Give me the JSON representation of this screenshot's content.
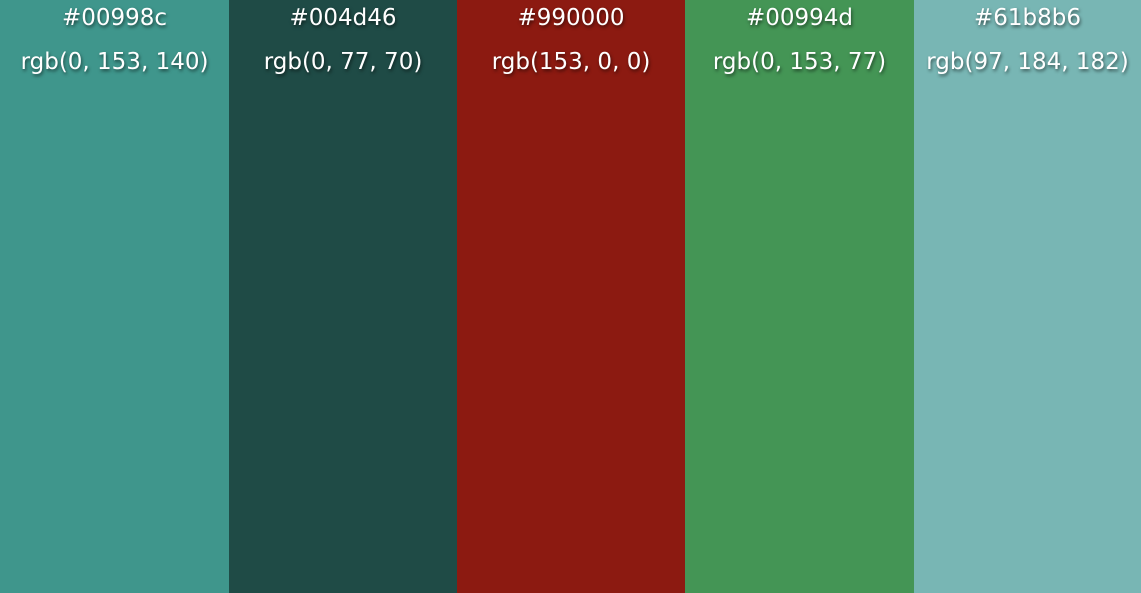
{
  "swatches": [
    {
      "hex": "#00998c",
      "rgb": "rgb(0, 153, 140)",
      "display_color": "#3f968c"
    },
    {
      "hex": "#004d46",
      "rgb": "rgb(0, 77, 70)",
      "display_color": "#1f4b46"
    },
    {
      "hex": "#990000",
      "rgb": "rgb(153, 0, 0)",
      "display_color": "#8c1a11"
    },
    {
      "hex": "#00994d",
      "rgb": "rgb(0, 153, 77)",
      "display_color": "#449555"
    },
    {
      "hex": "#61b8b6",
      "rgb": "rgb(97, 184, 182)",
      "display_color": "#78b6b4"
    }
  ]
}
